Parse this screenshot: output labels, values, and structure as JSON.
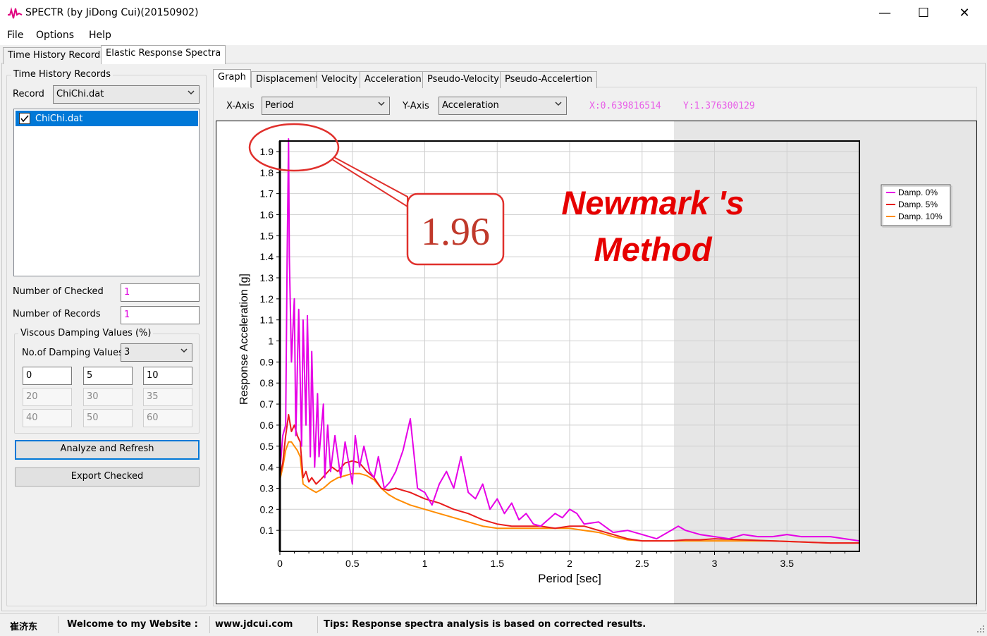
{
  "window": {
    "title": "SPECTR (by JiDong Cui)(20150902)",
    "minimize": "—",
    "maximize": "☐",
    "close": "✕"
  },
  "menu": [
    "File",
    "Options",
    "Help"
  ],
  "main_tabs": [
    {
      "label": "Time History Records"
    },
    {
      "label": "Elastic Response Spectra"
    }
  ],
  "sidebar": {
    "group_title": "Time History Records",
    "record_label": "Record",
    "record_value": "ChiChi.dat",
    "records": [
      {
        "name": "ChiChi.dat",
        "checked": true
      }
    ],
    "checked_label": "Number of Checked",
    "checked_value": "1",
    "records_label": "Number of Records",
    "records_value": "1",
    "damping_group_title": "Viscous Damping Values (%)",
    "num_damping_label": "No.of Damping Values",
    "num_damping_value": "3",
    "damping_values": [
      "0",
      "5",
      "10",
      "20",
      "30",
      "35",
      "40",
      "50",
      "60"
    ],
    "analyze_button": "Analyze and Refresh",
    "export_button": "Export Checked"
  },
  "graph_tabs": [
    "Graph",
    "Displacement",
    "Velocity",
    "Acceleration",
    "Pseudo-Velocity",
    "Pseudo-Accelertion"
  ],
  "axes_controls": {
    "x_label": "X-Axis",
    "x_value": "Period",
    "y_label": "Y-Axis",
    "y_value": "Acceleration",
    "cursor_x": "X:0.639816514",
    "cursor_y": "Y:1.376300129"
  },
  "annotation": {
    "callout": "1.96",
    "title_line1": "Newmark 's",
    "title_line2": "Method"
  },
  "status_bar": {
    "name": "崔济东",
    "welcome": "Welcome to my Website :",
    "website": "www.jdcui.com",
    "tips": "Tips: Response spectra analysis is based on corrected results."
  },
  "colors": {
    "damp0": "#e600e6",
    "damp5": "#e81c1c",
    "damp10": "#ff8c00",
    "accent": "#0078d7",
    "annotation_red": "#e60000"
  },
  "chart_data": {
    "type": "line",
    "xlabel": "Period [sec]",
    "ylabel": "Response Acceleration [g]",
    "xlim": [
      0,
      4.0
    ],
    "ylim": [
      0,
      1.95
    ],
    "xticks": [
      "0",
      "0.5",
      "1",
      "1.5",
      "2",
      "2.5",
      "3",
      "3.5"
    ],
    "yticks": [
      "0.1",
      "0.2",
      "0.3",
      "0.4",
      "0.5",
      "0.6",
      "0.7",
      "0.8",
      "0.9",
      "1",
      "1.1",
      "1.2",
      "1.3",
      "1.4",
      "1.5",
      "1.6",
      "1.7",
      "1.8",
      "1.9"
    ],
    "grid": true,
    "legend_position": "top-right",
    "series": [
      {
        "name": "Damp. 0%",
        "color": "#e600e6",
        "x": [
          0.0,
          0.02,
          0.04,
          0.05,
          0.06,
          0.065,
          0.08,
          0.1,
          0.11,
          0.13,
          0.15,
          0.16,
          0.18,
          0.19,
          0.21,
          0.22,
          0.24,
          0.26,
          0.27,
          0.3,
          0.31,
          0.33,
          0.35,
          0.38,
          0.42,
          0.45,
          0.5,
          0.52,
          0.55,
          0.58,
          0.62,
          0.65,
          0.68,
          0.72,
          0.76,
          0.8,
          0.85,
          0.9,
          0.95,
          1.0,
          1.05,
          1.1,
          1.15,
          1.2,
          1.25,
          1.3,
          1.35,
          1.4,
          1.45,
          1.5,
          1.55,
          1.6,
          1.65,
          1.7,
          1.75,
          1.8,
          1.85,
          1.9,
          1.95,
          2.0,
          2.05,
          2.1,
          2.2,
          2.3,
          2.4,
          2.5,
          2.6,
          2.7,
          2.75,
          2.8,
          2.9,
          3.0,
          3.1,
          3.2,
          3.3,
          3.4,
          3.5,
          3.6,
          3.7,
          3.8,
          3.9,
          4.0
        ],
        "y": [
          0.38,
          0.55,
          0.6,
          1.4,
          1.96,
          1.4,
          0.9,
          1.2,
          0.55,
          1.15,
          0.5,
          1.1,
          0.6,
          1.12,
          0.45,
          0.95,
          0.4,
          0.75,
          0.45,
          0.7,
          0.35,
          0.6,
          0.38,
          0.55,
          0.35,
          0.52,
          0.32,
          0.55,
          0.4,
          0.5,
          0.38,
          0.35,
          0.45,
          0.3,
          0.33,
          0.38,
          0.48,
          0.63,
          0.3,
          0.28,
          0.22,
          0.32,
          0.38,
          0.3,
          0.45,
          0.28,
          0.25,
          0.32,
          0.2,
          0.25,
          0.18,
          0.23,
          0.15,
          0.18,
          0.13,
          0.12,
          0.15,
          0.18,
          0.16,
          0.2,
          0.18,
          0.13,
          0.14,
          0.09,
          0.1,
          0.08,
          0.06,
          0.1,
          0.12,
          0.1,
          0.08,
          0.07,
          0.06,
          0.08,
          0.07,
          0.07,
          0.08,
          0.07,
          0.07,
          0.07,
          0.06,
          0.05
        ]
      },
      {
        "name": "Damp. 5%",
        "color": "#e81c1c",
        "x": [
          0.0,
          0.02,
          0.04,
          0.05,
          0.06,
          0.08,
          0.1,
          0.12,
          0.14,
          0.16,
          0.18,
          0.2,
          0.22,
          0.25,
          0.28,
          0.32,
          0.36,
          0.4,
          0.45,
          0.5,
          0.55,
          0.6,
          0.65,
          0.7,
          0.75,
          0.8,
          0.9,
          1.0,
          1.1,
          1.2,
          1.3,
          1.4,
          1.5,
          1.6,
          1.7,
          1.8,
          1.9,
          2.0,
          2.1,
          2.2,
          2.3,
          2.4,
          2.5,
          2.6,
          2.7,
          2.8,
          2.9,
          3.0,
          3.2,
          3.4,
          3.6,
          3.8,
          4.0
        ],
        "y": [
          0.36,
          0.42,
          0.55,
          0.6,
          0.65,
          0.57,
          0.6,
          0.55,
          0.52,
          0.35,
          0.38,
          0.33,
          0.35,
          0.32,
          0.34,
          0.37,
          0.4,
          0.38,
          0.42,
          0.43,
          0.42,
          0.38,
          0.35,
          0.3,
          0.29,
          0.3,
          0.28,
          0.25,
          0.23,
          0.2,
          0.18,
          0.15,
          0.13,
          0.12,
          0.12,
          0.12,
          0.11,
          0.12,
          0.12,
          0.1,
          0.08,
          0.06,
          0.05,
          0.05,
          0.05,
          0.055,
          0.055,
          0.06,
          0.055,
          0.05,
          0.045,
          0.04,
          0.04
        ]
      },
      {
        "name": "Damp. 10%",
        "color": "#ff8c00",
        "x": [
          0.0,
          0.02,
          0.04,
          0.06,
          0.08,
          0.1,
          0.12,
          0.14,
          0.16,
          0.2,
          0.25,
          0.3,
          0.35,
          0.4,
          0.45,
          0.5,
          0.55,
          0.6,
          0.65,
          0.7,
          0.75,
          0.8,
          0.9,
          1.0,
          1.1,
          1.2,
          1.3,
          1.4,
          1.5,
          1.6,
          1.7,
          1.8,
          1.9,
          2.0,
          2.1,
          2.2,
          2.3,
          2.4,
          2.5,
          2.6,
          2.7,
          2.8,
          2.9,
          3.0,
          3.2,
          3.4,
          3.6,
          3.8,
          4.0
        ],
        "y": [
          0.34,
          0.4,
          0.48,
          0.52,
          0.52,
          0.5,
          0.48,
          0.45,
          0.32,
          0.3,
          0.28,
          0.3,
          0.33,
          0.35,
          0.36,
          0.37,
          0.37,
          0.36,
          0.34,
          0.3,
          0.27,
          0.25,
          0.22,
          0.2,
          0.18,
          0.16,
          0.14,
          0.12,
          0.11,
          0.11,
          0.11,
          0.11,
          0.11,
          0.11,
          0.1,
          0.09,
          0.07,
          0.055,
          0.05,
          0.05,
          0.05,
          0.05,
          0.05,
          0.05,
          0.05,
          0.05,
          0.045,
          0.04,
          0.04
        ]
      }
    ]
  }
}
